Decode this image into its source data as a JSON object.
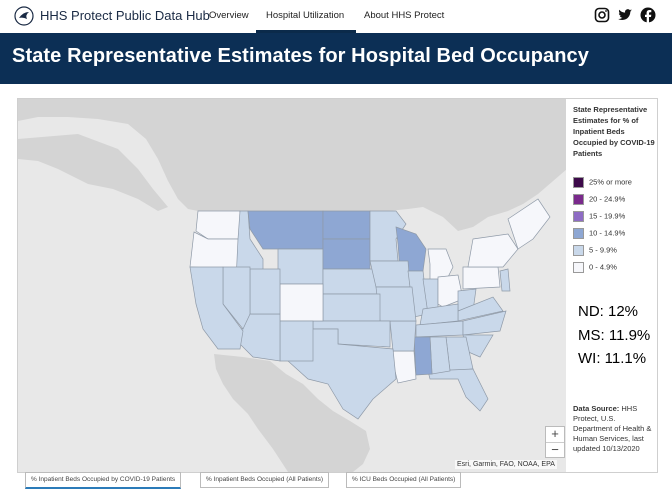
{
  "nav": {
    "brand": "HHS Protect Public Data Hub",
    "tabs": [
      "Overview",
      "Hospital Utilization",
      "About HHS Protect"
    ],
    "active_tab": "Hospital Utilization"
  },
  "banner": {
    "title": "State Representative Estimates for Hospital Bed Occupancy"
  },
  "legend": {
    "title": "State Representative Estimates for % of Inpatient Beds Occupied by COVID-19 Patients",
    "items": [
      {
        "label": "25% or more",
        "color": "#3d0a4a"
      },
      {
        "label": "20 - 24.9%",
        "color": "#7a2a8c"
      },
      {
        "label": "15 - 19.9%",
        "color": "#8e6cc4"
      },
      {
        "label": "10 - 14.9%",
        "color": "#8ea7d3"
      },
      {
        "label": "5 - 9.9%",
        "color": "#c9d8ea"
      },
      {
        "label": "0 - 4.9%",
        "color": "#f6f7fb"
      }
    ],
    "source_label": "Data Source:",
    "source_text": "HHS Protect, U.S. Department of Health & Human Services, last updated 10/13/2020"
  },
  "callouts": [
    "ND: 12%",
    "MS: 11.9%",
    "WI: 11.1%"
  ],
  "map": {
    "attribution": "Esri, Garmin, FAO, NOAA, EPA",
    "zoom_in": "+",
    "zoom_out": "−"
  },
  "bottom_tabs": [
    "% Inpatient Beds Occupied by COVID-19 Patients",
    "% Inpatient Beds Occupied (All Patients)",
    "% ICU Beds Occupied (All Patients)"
  ],
  "colors": {
    "banner": "#0c2f55",
    "map_background": "#e8e8e8",
    "land": "#d3d3d3"
  }
}
